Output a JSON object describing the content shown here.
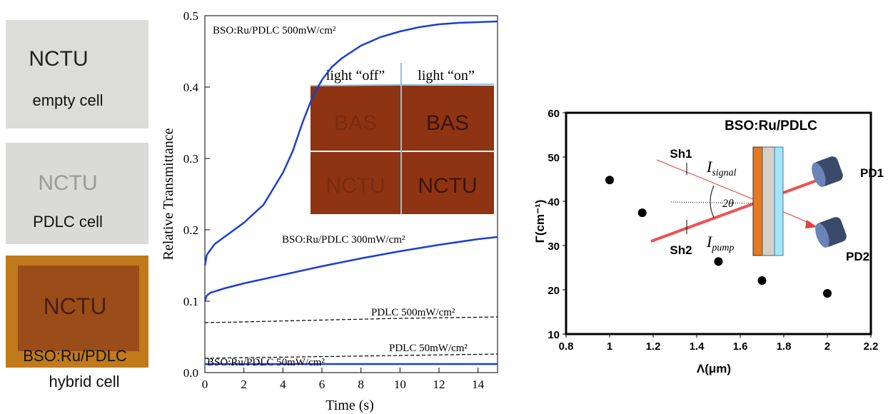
{
  "photos": [
    {
      "label": "NCTU",
      "caption": [
        "empty cell"
      ]
    },
    {
      "label": "NCTU",
      "caption": [
        "PDLC cell"
      ]
    },
    {
      "label": "NCTU",
      "caption": [
        "BSO:Ru/PDLC",
        "hybrid cell"
      ]
    }
  ],
  "chart_data": [
    {
      "type": "line",
      "xlabel": "Time (s)",
      "ylabel": "Relative  Transmittance",
      "xlim": [
        0,
        15
      ],
      "ylim": [
        0,
        0.5
      ],
      "xticks": [
        0,
        2,
        4,
        6,
        8,
        10,
        12,
        14
      ],
      "yticks": [
        {
          "value": 0,
          "label": "0.0"
        },
        0.1,
        0.2,
        0.3,
        0.4,
        0.5
      ],
      "series": [
        {
          "name": "BSO:Ru/PDLC   500mW/cm²",
          "color": "#1c3fd0",
          "dash": false,
          "x": [
            0,
            0.1,
            0.5,
            1,
            1.5,
            2,
            3,
            4,
            4.5,
            5,
            5.5,
            6,
            6.5,
            7,
            8,
            9,
            10,
            11,
            12,
            13,
            14,
            15
          ],
          "values": [
            0.15,
            0.165,
            0.18,
            0.19,
            0.2,
            0.21,
            0.235,
            0.28,
            0.31,
            0.35,
            0.385,
            0.41,
            0.428,
            0.44,
            0.458,
            0.47,
            0.478,
            0.484,
            0.488,
            0.49,
            0.491,
            0.492
          ]
        },
        {
          "name": "BSO:Ru/PDLC  300mW/cm²",
          "color": "#1c3fd0",
          "dash": false,
          "x": [
            0,
            0.1,
            0.3,
            1,
            2,
            3,
            4,
            6,
            8,
            10,
            12,
            14,
            15
          ],
          "values": [
            0.1,
            0.108,
            0.112,
            0.118,
            0.125,
            0.131,
            0.137,
            0.149,
            0.16,
            0.17,
            0.179,
            0.187,
            0.19
          ]
        },
        {
          "name": "PDLC  500mW/cm²",
          "color": "#000000",
          "dash": true,
          "x": [
            0,
            2,
            5,
            10,
            15
          ],
          "values": [
            0.07,
            0.071,
            0.073,
            0.076,
            0.078
          ]
        },
        {
          "name": "PDLC  50mW/cm²",
          "color": "#000000",
          "dash": true,
          "x": [
            0,
            2,
            5,
            10,
            15
          ],
          "values": [
            0.02,
            0.021,
            0.022,
            0.024,
            0.026
          ]
        },
        {
          "name": "BSO:Ru/PDLC 50mW/cm²",
          "color": "#1c3fd0",
          "dash": false,
          "x": [
            0,
            15
          ],
          "values": [
            0.012,
            0.012
          ]
        }
      ],
      "inset_headers": [
        "light “off”",
        "light “on”"
      ],
      "inset_labels": [
        "BAS",
        "BAS",
        "NCTU",
        "NCTU"
      ]
    },
    {
      "type": "scatter",
      "xlabel": "Λ(μm)",
      "ylabel": "Γ(cm⁻¹)",
      "color": "#000000",
      "xlim": [
        0.8,
        2.2
      ],
      "ylim": [
        10,
        60
      ],
      "xticks": [
        0.8,
        1,
        1.2,
        1.4,
        1.6,
        1.8,
        2,
        2.2
      ],
      "yticks": [
        10,
        20,
        30,
        40,
        50,
        60
      ],
      "x": [
        1,
        1.15,
        1.5,
        1.7,
        2
      ],
      "values": [
        44.8,
        37.4,
        26.4,
        22.1,
        19.2
      ],
      "diagram": {
        "sample": "BSO:Ru/PDLC",
        "shutters": [
          "Sh1",
          "Sh2"
        ],
        "detectors": [
          "PD1",
          "PD2"
        ],
        "signal": {
          "main": "I",
          "sub": "signal"
        },
        "pump": {
          "main": "I",
          "sub": "pump"
        },
        "angle": "2θ"
      }
    }
  ]
}
